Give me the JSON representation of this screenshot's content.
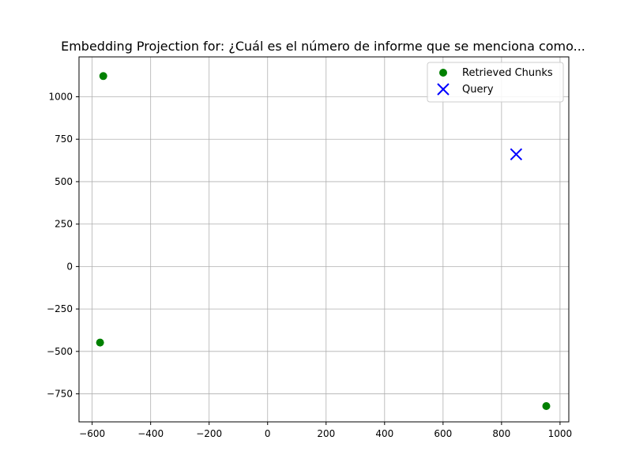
{
  "chart_data": {
    "type": "scatter",
    "title": "Embedding Projection for: ¿Cuál es el número de informe que se menciona como...",
    "xlabel": "",
    "ylabel": "",
    "xlim": [
      -645,
      1030
    ],
    "ylim": [
      -915,
      1235
    ],
    "xticks": [
      -600,
      -400,
      -200,
      0,
      200,
      400,
      600,
      800,
      1000
    ],
    "yticks": [
      -750,
      -500,
      -250,
      0,
      250,
      500,
      750,
      1000
    ],
    "grid": true,
    "legend_position": "top-right",
    "series": [
      {
        "name": "Retrieved Chunks",
        "marker": "circle",
        "color": "#008000",
        "points": [
          {
            "x": -562,
            "y": 1122
          },
          {
            "x": -573,
            "y": -448
          },
          {
            "x": 953,
            "y": -822
          }
        ]
      },
      {
        "name": "Query",
        "marker": "x",
        "color": "#0000ff",
        "points": [
          {
            "x": 850,
            "y": 661
          }
        ]
      }
    ]
  }
}
